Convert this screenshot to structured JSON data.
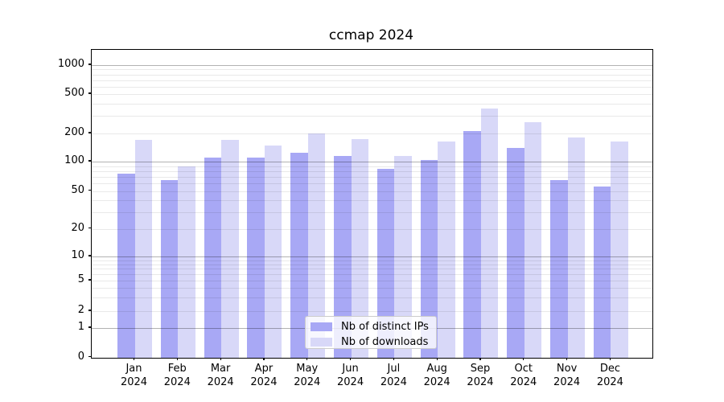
{
  "title": "ccmap 2024",
  "colors": {
    "bar_distinct_ips": "#a8a8f5",
    "bar_downloads": "#d8d8f8",
    "grid_major": "#b3b3b3",
    "grid_minor": "#e8e8e8",
    "axis": "#000000"
  },
  "legend": {
    "items": [
      {
        "label": "Nb of distinct IPs",
        "color": "#a8a8f5"
      },
      {
        "label": "Nb of downloads",
        "color": "#d8d8f8"
      }
    ]
  },
  "chart_data": {
    "type": "bar",
    "title": "ccmap 2024",
    "categories": [
      "Jan 2024",
      "Feb 2024",
      "Mar 2024",
      "Apr 2024",
      "May 2024",
      "Jun 2024",
      "Jul 2024",
      "Aug 2024",
      "Sep 2024",
      "Oct 2024",
      "Nov 2024",
      "Dec 2024"
    ],
    "series": [
      {
        "name": "Nb of distinct IPs",
        "color": "#a8a8f5",
        "values": [
          75,
          65,
          110,
          110,
          125,
          115,
          85,
          105,
          210,
          140,
          65,
          55
        ]
      },
      {
        "name": "Nb of downloads",
        "color": "#d8d8f8",
        "values": [
          170,
          90,
          170,
          150,
          200,
          175,
          115,
          165,
          355,
          260,
          180,
          165
        ]
      }
    ],
    "xlabel": "",
    "ylabel": "",
    "yscale": "symlog",
    "yticks": [
      0,
      1,
      2,
      5,
      10,
      20,
      50,
      100,
      200,
      500,
      1000
    ],
    "ylim": [
      0,
      1400
    ],
    "grid": true,
    "legend_position": "lower center inside"
  }
}
